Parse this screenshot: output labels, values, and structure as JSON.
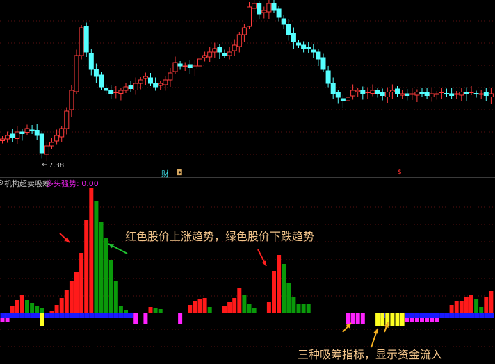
{
  "price_panel": {
    "low_marker": "7.38",
    "event_markers": [
      {
        "label": "财",
        "color": "#40e0e8"
      },
      {
        "label": "◘",
        "color": "#d8a860"
      },
      {
        "label": "$",
        "color": "#ff3030"
      }
    ]
  },
  "indicator_panel": {
    "name": "机构超卖吸筹",
    "value_label": "多头强势: 0.00",
    "name_color": "#c8c8c8",
    "value_color": "#e020e0"
  },
  "annotations": {
    "trend_note": "红色股价上涨趋势，绿色股价下跌趋势",
    "accumulation_note": "三种吸筹指标，显示资金流入"
  },
  "colors": {
    "up_candle": "#ff3b3b",
    "down_candle": "#54ffff",
    "rising_bar": "#ff1a1a",
    "falling_bar": "#0a9a0a",
    "blue_signal": "#1a1aff",
    "magenta_signal": "#ff22ff",
    "yellow_signal": "#ffff22",
    "arrow_yellow": "#f5b020"
  },
  "chart_data": [
    {
      "type": "candlestick",
      "title": "",
      "closes": [
        8.0,
        8.1,
        8.05,
        8.2,
        8.15,
        8.3,
        8.25,
        8.1,
        7.6,
        7.8,
        7.9,
        8.1,
        8.3,
        8.8,
        9.4,
        10.4,
        11.2,
        10.5,
        10.0,
        9.8,
        9.5,
        9.4,
        9.3,
        9.35,
        9.4,
        9.5,
        9.45,
        9.6,
        9.7,
        9.8,
        9.6,
        9.5,
        9.6,
        9.7,
        9.9,
        10.2,
        10.1,
        10.1,
        10.05,
        10.1,
        10.3,
        10.4,
        10.5,
        10.6,
        10.5,
        10.4,
        10.5,
        10.7,
        11.0,
        11.2,
        11.8,
        11.9,
        11.6,
        11.7,
        11.9,
        11.7,
        11.5,
        11.3,
        11.0,
        10.8,
        10.7,
        10.6,
        10.6,
        10.5,
        10.3,
        10.0,
        9.6,
        9.3,
        9.2,
        9.1,
        9.2,
        9.4,
        9.4,
        9.3,
        9.35,
        9.4,
        9.3,
        9.25,
        9.35,
        9.4,
        9.3,
        9.3,
        9.25,
        9.3,
        9.35,
        9.3,
        9.25,
        9.3,
        9.3,
        9.35,
        9.3,
        9.25,
        9.3,
        9.35,
        9.3,
        9.35,
        9.3,
        9.3,
        9.25,
        9.3
      ],
      "low_label": 7.38
    },
    {
      "type": "bar",
      "title": "机构超卖吸筹",
      "trend_bars": {
        "2": [
          10,
          "r"
        ],
        "3": [
          18,
          "r"
        ],
        "4": [
          25,
          "r"
        ],
        "5": [
          18,
          "g"
        ],
        "6": [
          14,
          "g"
        ],
        "7": [
          9,
          "g"
        ],
        "8": [
          6,
          "g"
        ],
        "10": [
          3,
          "r"
        ],
        "11": [
          11,
          "r"
        ],
        "12": [
          21,
          "r"
        ],
        "13": [
          33,
          "r"
        ],
        "14": [
          46,
          "r"
        ],
        "15": [
          59,
          "r"
        ],
        "16": [
          86,
          "r"
        ],
        "17": [
          133,
          "r"
        ],
        "18": [
          180,
          "r"
        ],
        "19": [
          160,
          "g"
        ],
        "20": [
          130,
          "g"
        ],
        "21": [
          107,
          "g"
        ],
        "22": [
          75,
          "g"
        ],
        "23": [
          45,
          "g"
        ],
        "24": [
          10,
          "g"
        ],
        "25": [
          4,
          "g"
        ],
        "30": [
          8,
          "r"
        ],
        "31": [
          6,
          "g"
        ],
        "32": [
          5,
          "g"
        ],
        "38": [
          11,
          "r"
        ],
        "39": [
          17,
          "r"
        ],
        "40": [
          19,
          "r"
        ],
        "41": [
          21,
          "r"
        ],
        "42": [
          8,
          "g"
        ],
        "45": [
          10,
          "r"
        ],
        "46": [
          15,
          "r"
        ],
        "47": [
          21,
          "r"
        ],
        "48": [
          36,
          "r"
        ],
        "49": [
          26,
          "g"
        ],
        "50": [
          13,
          "g"
        ],
        "51": [
          6,
          "g"
        ],
        "54": [
          15,
          "r"
        ],
        "55": [
          60,
          "r"
        ],
        "56": [
          83,
          "r"
        ],
        "57": [
          70,
          "g"
        ],
        "58": [
          43,
          "g"
        ],
        "59": [
          22,
          "g"
        ],
        "60": [
          12,
          "g"
        ],
        "61": [
          12,
          "g"
        ],
        "62": [
          12,
          "g"
        ],
        "91": [
          11,
          "r"
        ],
        "92": [
          16,
          "r"
        ],
        "93": [
          16,
          "r"
        ],
        "94": [
          23,
          "r"
        ],
        "95": [
          26,
          "r"
        ],
        "96": [
          19,
          "g"
        ],
        "97": [
          8,
          "g"
        ],
        "98": [
          23,
          "r"
        ],
        "99": [
          31,
          "r"
        ]
      },
      "signal_bars": {
        "0": [
          "b",
          "m"
        ],
        "1": [
          "b",
          "m"
        ],
        "2": [
          "b"
        ],
        "3": [
          "b"
        ],
        "4": [
          "b"
        ],
        "5": [
          "b"
        ],
        "6": [
          "b"
        ],
        "7": [
          "b"
        ],
        "8": [
          "y"
        ],
        "9": [
          "b"
        ],
        "10": [
          "b"
        ],
        "11": [
          "b"
        ],
        "12": [
          "b"
        ],
        "13": [
          "b"
        ],
        "14": [
          "b"
        ],
        "15": [
          "b"
        ],
        "16": [
          "b"
        ],
        "17": [
          "b"
        ],
        "18": [
          "b"
        ],
        "19": [
          "b"
        ],
        "20": [
          "b"
        ],
        "21": [
          "b"
        ],
        "22": [
          "b"
        ],
        "23": [
          "b"
        ],
        "24": [
          "b"
        ],
        "25": [
          "b"
        ],
        "26": [
          "b"
        ],
        "27": [
          "m"
        ],
        "29": [
          "m"
        ],
        "36": [
          "m"
        ],
        "70": [
          "m"
        ],
        "71": [
          "m"
        ],
        "72": [
          "m"
        ],
        "73": [
          "m"
        ],
        "76": [
          "y"
        ],
        "77": [
          "y",
          "b"
        ],
        "78": [
          "y"
        ],
        "79": [
          "y"
        ],
        "80": [
          "y",
          "m"
        ],
        "81": [
          "y",
          "m"
        ],
        "82": [
          "b",
          "m"
        ],
        "83": [
          "b",
          "m"
        ],
        "84": [
          "b",
          "m"
        ],
        "85": [
          "b",
          "m"
        ],
        "86": [
          "b",
          "m"
        ],
        "87": [
          "b",
          "m"
        ],
        "88": [
          "b",
          "m"
        ],
        "89": [
          "b"
        ],
        "90": [
          "b"
        ],
        "91": [
          "b"
        ],
        "92": [
          "b"
        ],
        "93": [
          "b"
        ],
        "94": [
          "b"
        ],
        "95": [
          "b"
        ],
        "96": [
          "b"
        ],
        "97": [
          "b"
        ],
        "98": [
          "b"
        ],
        "99": [
          "b"
        ]
      }
    }
  ]
}
